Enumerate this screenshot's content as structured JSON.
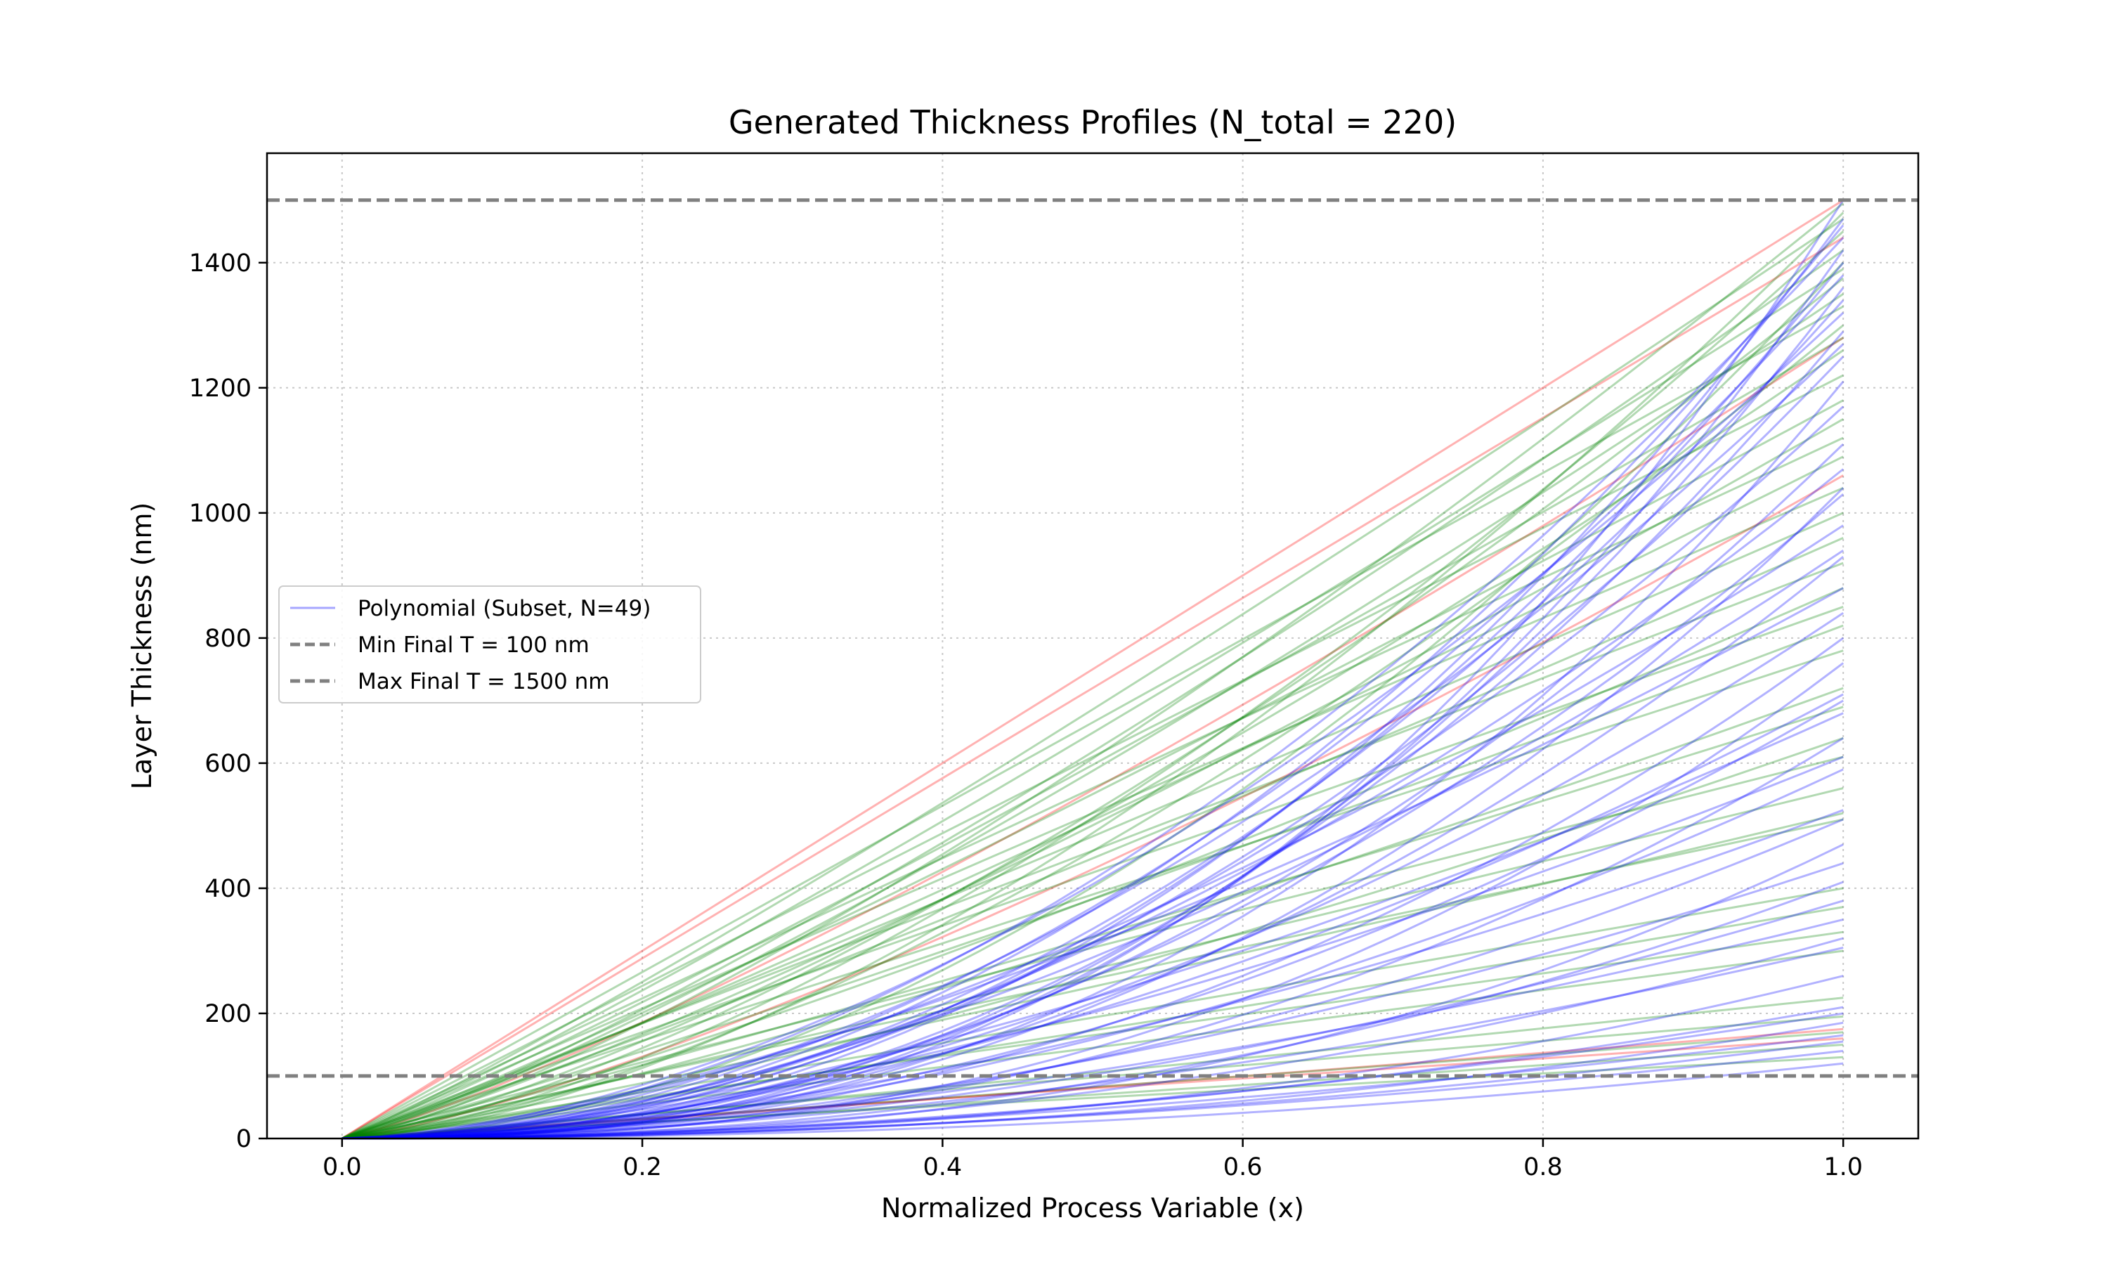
{
  "chart_data": {
    "type": "line",
    "title": "Generated Thickness Profiles (N_total = 220)",
    "xlabel": "Normalized Process Variable (x)",
    "ylabel": "Layer Thickness (nm)",
    "xlim": [
      -0.05,
      1.05
    ],
    "ylim": [
      0,
      1575
    ],
    "x_ticks": [
      "0.0",
      "0.2",
      "0.4",
      "0.6",
      "0.8",
      "1.0"
    ],
    "y_ticks": [
      "0",
      "200",
      "400",
      "600",
      "800",
      "1000",
      "1200",
      "1400"
    ],
    "grid": true,
    "legend_placement": "center-left",
    "legend": [
      {
        "label": "Polynomial (Subset, N=49)",
        "style": "line",
        "color": "#0000ff"
      },
      {
        "label": "Min Final T = 100 nm",
        "style": "dashed",
        "color": "#808080"
      },
      {
        "label": "Max Final T = 1500 nm",
        "style": "dashed",
        "color": "#808080"
      }
    ],
    "reference_lines": [
      {
        "y": 100,
        "color": "#808080"
      },
      {
        "y": 1500,
        "color": "#808080"
      }
    ],
    "series": [
      {
        "color": "#ff0000",
        "curves": [
          [
            1500,
            1.0
          ],
          [
            1440,
            1.0
          ],
          [
            1280,
            1.2
          ],
          [
            1060,
            1.3
          ],
          [
            175,
            1.1
          ],
          [
            160,
            1.0
          ]
        ]
      },
      {
        "color": "#008000",
        "curves": [
          [
            1495,
            1.3
          ],
          [
            1480,
            1.6
          ],
          [
            1470,
            1.1
          ],
          [
            1450,
            1.5
          ],
          [
            1420,
            1.2
          ],
          [
            1400,
            1.8
          ],
          [
            1390,
            1.1
          ],
          [
            1375,
            1.4
          ],
          [
            1350,
            1.2
          ],
          [
            1330,
            1.0
          ],
          [
            1300,
            1.5
          ],
          [
            1280,
            1.1
          ],
          [
            1260,
            1.3
          ],
          [
            1220,
            1.0
          ],
          [
            1180,
            1.1
          ],
          [
            1150,
            1.2
          ],
          [
            1120,
            1.0
          ],
          [
            1090,
            1.1
          ],
          [
            1040,
            1.0
          ],
          [
            1000,
            1.05
          ],
          [
            960,
            1.1
          ],
          [
            920,
            1.0
          ],
          [
            880,
            1.2
          ],
          [
            850,
            1.0
          ],
          [
            820,
            1.1
          ],
          [
            780,
            1.0
          ],
          [
            720,
            1.2
          ],
          [
            690,
            1.1
          ],
          [
            640,
            1.3
          ],
          [
            610,
            1.0
          ],
          [
            560,
            1.05
          ],
          [
            520,
            1.1
          ],
          [
            510,
            1.0
          ],
          [
            400,
            1.05
          ],
          [
            370,
            1.1
          ],
          [
            330,
            1.0
          ],
          [
            300,
            1.05
          ],
          [
            225,
            1.1
          ],
          [
            195,
            1.0
          ],
          [
            170,
            1.05
          ],
          [
            150,
            1.1
          ],
          [
            130,
            1.0
          ]
        ]
      },
      {
        "color": "#0000ff",
        "curves": [
          [
            1500,
            2.5
          ],
          [
            1470,
            2.2
          ],
          [
            1460,
            2.0
          ],
          [
            1440,
            1.8
          ],
          [
            1420,
            2.4
          ],
          [
            1400,
            2.1
          ],
          [
            1380,
            1.9
          ],
          [
            1360,
            2.3
          ],
          [
            1340,
            2.0
          ],
          [
            1320,
            1.7
          ],
          [
            1290,
            2.2
          ],
          [
            1270,
            1.8
          ],
          [
            1250,
            2.0
          ],
          [
            1210,
            2.4
          ],
          [
            1170,
            1.9
          ],
          [
            1110,
            2.1
          ],
          [
            1070,
            1.8
          ],
          [
            1040,
            2.3
          ],
          [
            1030,
            2.0
          ],
          [
            940,
            1.7
          ],
          [
            930,
            2.1
          ],
          [
            840,
            1.9
          ],
          [
            800,
            2.2
          ],
          [
            710,
            1.8
          ],
          [
            700,
            2.0
          ],
          [
            680,
            1.6
          ],
          [
            640,
            2.3
          ],
          [
            590,
            1.9
          ],
          [
            525,
            1.7
          ],
          [
            510,
            2.0
          ],
          [
            440,
            1.8
          ],
          [
            410,
            2.2
          ],
          [
            380,
            1.9
          ],
          [
            320,
            2.1
          ],
          [
            305,
            1.8
          ],
          [
            210,
            2.0
          ],
          [
            200,
            1.9
          ],
          [
            185,
            2.2
          ],
          [
            165,
            1.8
          ],
          [
            155,
            2.0
          ],
          [
            140,
            1.9
          ],
          [
            120,
            2.1
          ],
          [
            980,
            1.6
          ],
          [
            880,
            1.5
          ],
          [
            760,
            2.4
          ],
          [
            610,
            1.6
          ],
          [
            470,
            2.5
          ],
          [
            350,
            1.7
          ],
          [
            260,
            2.3
          ]
        ]
      }
    ]
  }
}
